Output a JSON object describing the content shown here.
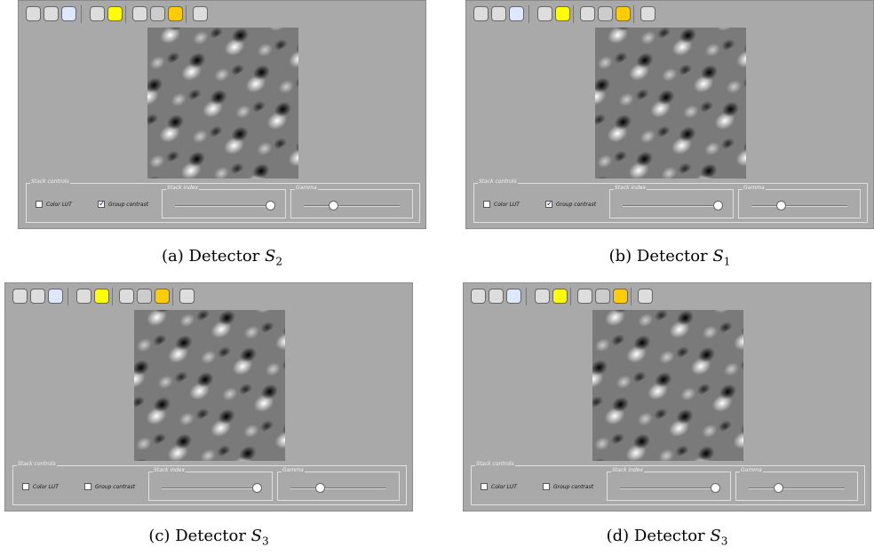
{
  "panels": [
    {
      "caption": {
        "label": "(a)",
        "word": "Detector",
        "symbol": "S",
        "index": "2"
      },
      "legend": "Stack controls",
      "color_lut": {
        "label": "Color LUT",
        "checked": false
      },
      "group_contrast": {
        "label": "Group contrast",
        "checked": true
      },
      "stack_index": "Stack index",
      "gamma": "Gamma"
    },
    {
      "caption": {
        "label": "(b)",
        "word": "Detector",
        "symbol": "S",
        "index": "1"
      },
      "legend": "Stack controls",
      "color_lut": {
        "label": "Color LUT",
        "checked": false
      },
      "group_contrast": {
        "label": "Group contrast",
        "checked": true
      },
      "stack_index": "Stack index",
      "gamma": "Gamma"
    },
    {
      "caption": {
        "label": "(c)",
        "word": "Detector",
        "symbol": "S",
        "index": "3"
      },
      "legend": "Stack controls",
      "color_lut": {
        "label": "Color LUT",
        "checked": false
      },
      "group_contrast": {
        "label": "Group contrast",
        "checked": false
      },
      "stack_index": "Stack index",
      "gamma": "Gamma"
    },
    {
      "caption": {
        "label": "(d)",
        "word": "Detector",
        "symbol": "S",
        "index": "3"
      },
      "legend": "Stack controls",
      "color_lut": {
        "label": "Color LUT",
        "checked": false
      },
      "group_contrast": {
        "label": "Group contrast",
        "checked": false
      },
      "stack_index": "Stack index",
      "gamma": "Gamma"
    }
  ]
}
